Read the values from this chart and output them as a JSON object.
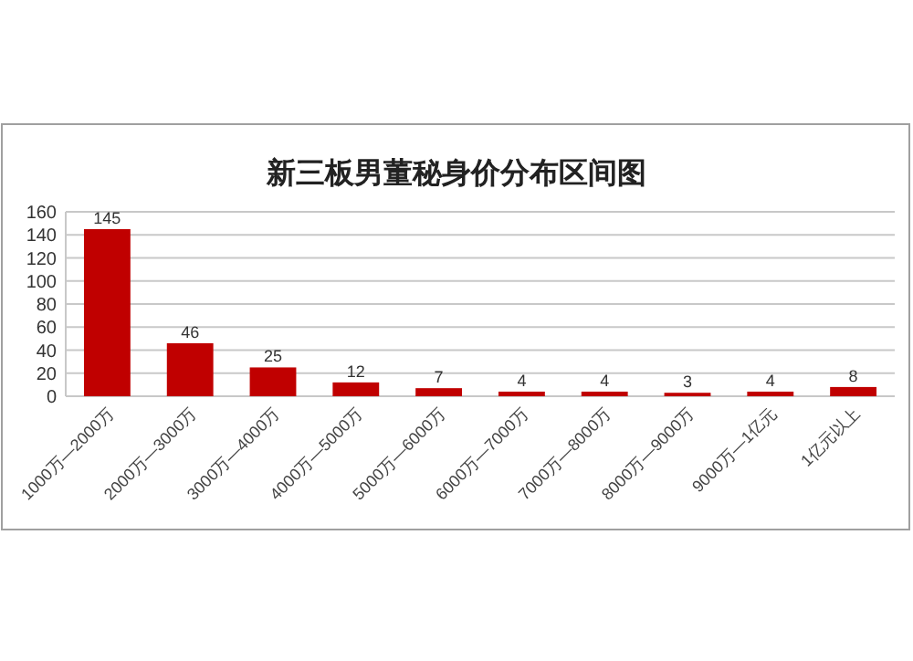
{
  "chart_data": {
    "type": "bar",
    "title": "新三板男董秘身价分布区间图",
    "categories": [
      "1000万—2000万",
      "2000万—3000万",
      "3000万—4000万",
      "4000万—5000万",
      "5000万—6000万",
      "6000万—7000万",
      "7000万—8000万",
      "8000万—9000万",
      "9000万—1亿元",
      "1亿元以上"
    ],
    "values": [
      145,
      46,
      25,
      12,
      7,
      4,
      4,
      3,
      4,
      8
    ],
    "color": "#c00000",
    "ylim": [
      0,
      160
    ],
    "yticks": [
      0,
      20,
      40,
      60,
      80,
      100,
      120,
      140,
      160
    ],
    "grid": "y",
    "data_labels": true
  }
}
